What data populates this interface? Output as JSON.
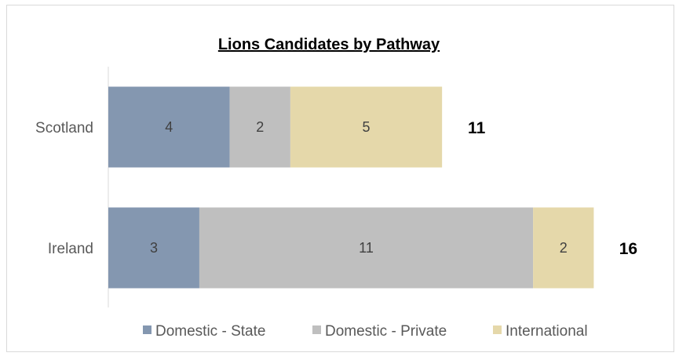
{
  "chart_data": {
    "type": "bar",
    "orientation": "horizontal",
    "stacked": true,
    "title": "Lions Candidates by Pathway",
    "categories": [
      "Scotland",
      "Ireland"
    ],
    "series": [
      {
        "name": "Domestic - State",
        "values": [
          4,
          3
        ],
        "color": "#8497b0"
      },
      {
        "name": "Domestic - Private",
        "values": [
          2,
          11
        ],
        "color": "#bfbfbf"
      },
      {
        "name": "International",
        "values": [
          5,
          2
        ],
        "color": "#e5d8aa"
      }
    ],
    "totals": [
      11,
      16
    ],
    "xlim": [
      0,
      18
    ],
    "grid": false,
    "legend": "bottom"
  }
}
